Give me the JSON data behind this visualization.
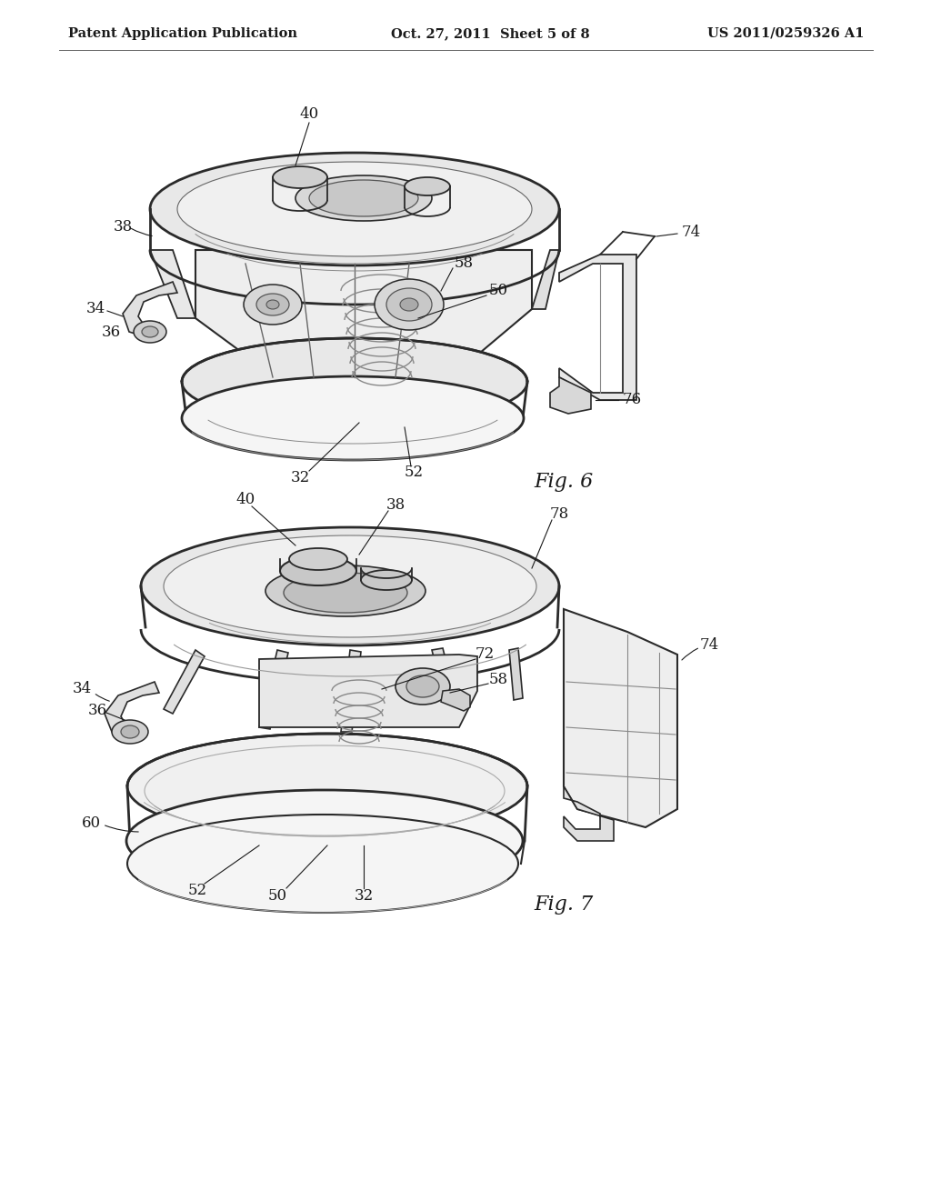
{
  "bg_color": "#ffffff",
  "header_left": "Patent Application Publication",
  "header_center": "Oct. 27, 2011  Sheet 5 of 8",
  "header_right": "US 2011/0259326 A1",
  "fig6_label": "Fig. 6",
  "fig7_label": "Fig. 7",
  "text_color": "#1a1a1a",
  "line_color": "#2a2a2a",
  "fill_light": "#f0f0f0",
  "fill_mid": "#e0e0e0",
  "fill_dark": "#c8c8c8",
  "fill_white": "#ffffff"
}
